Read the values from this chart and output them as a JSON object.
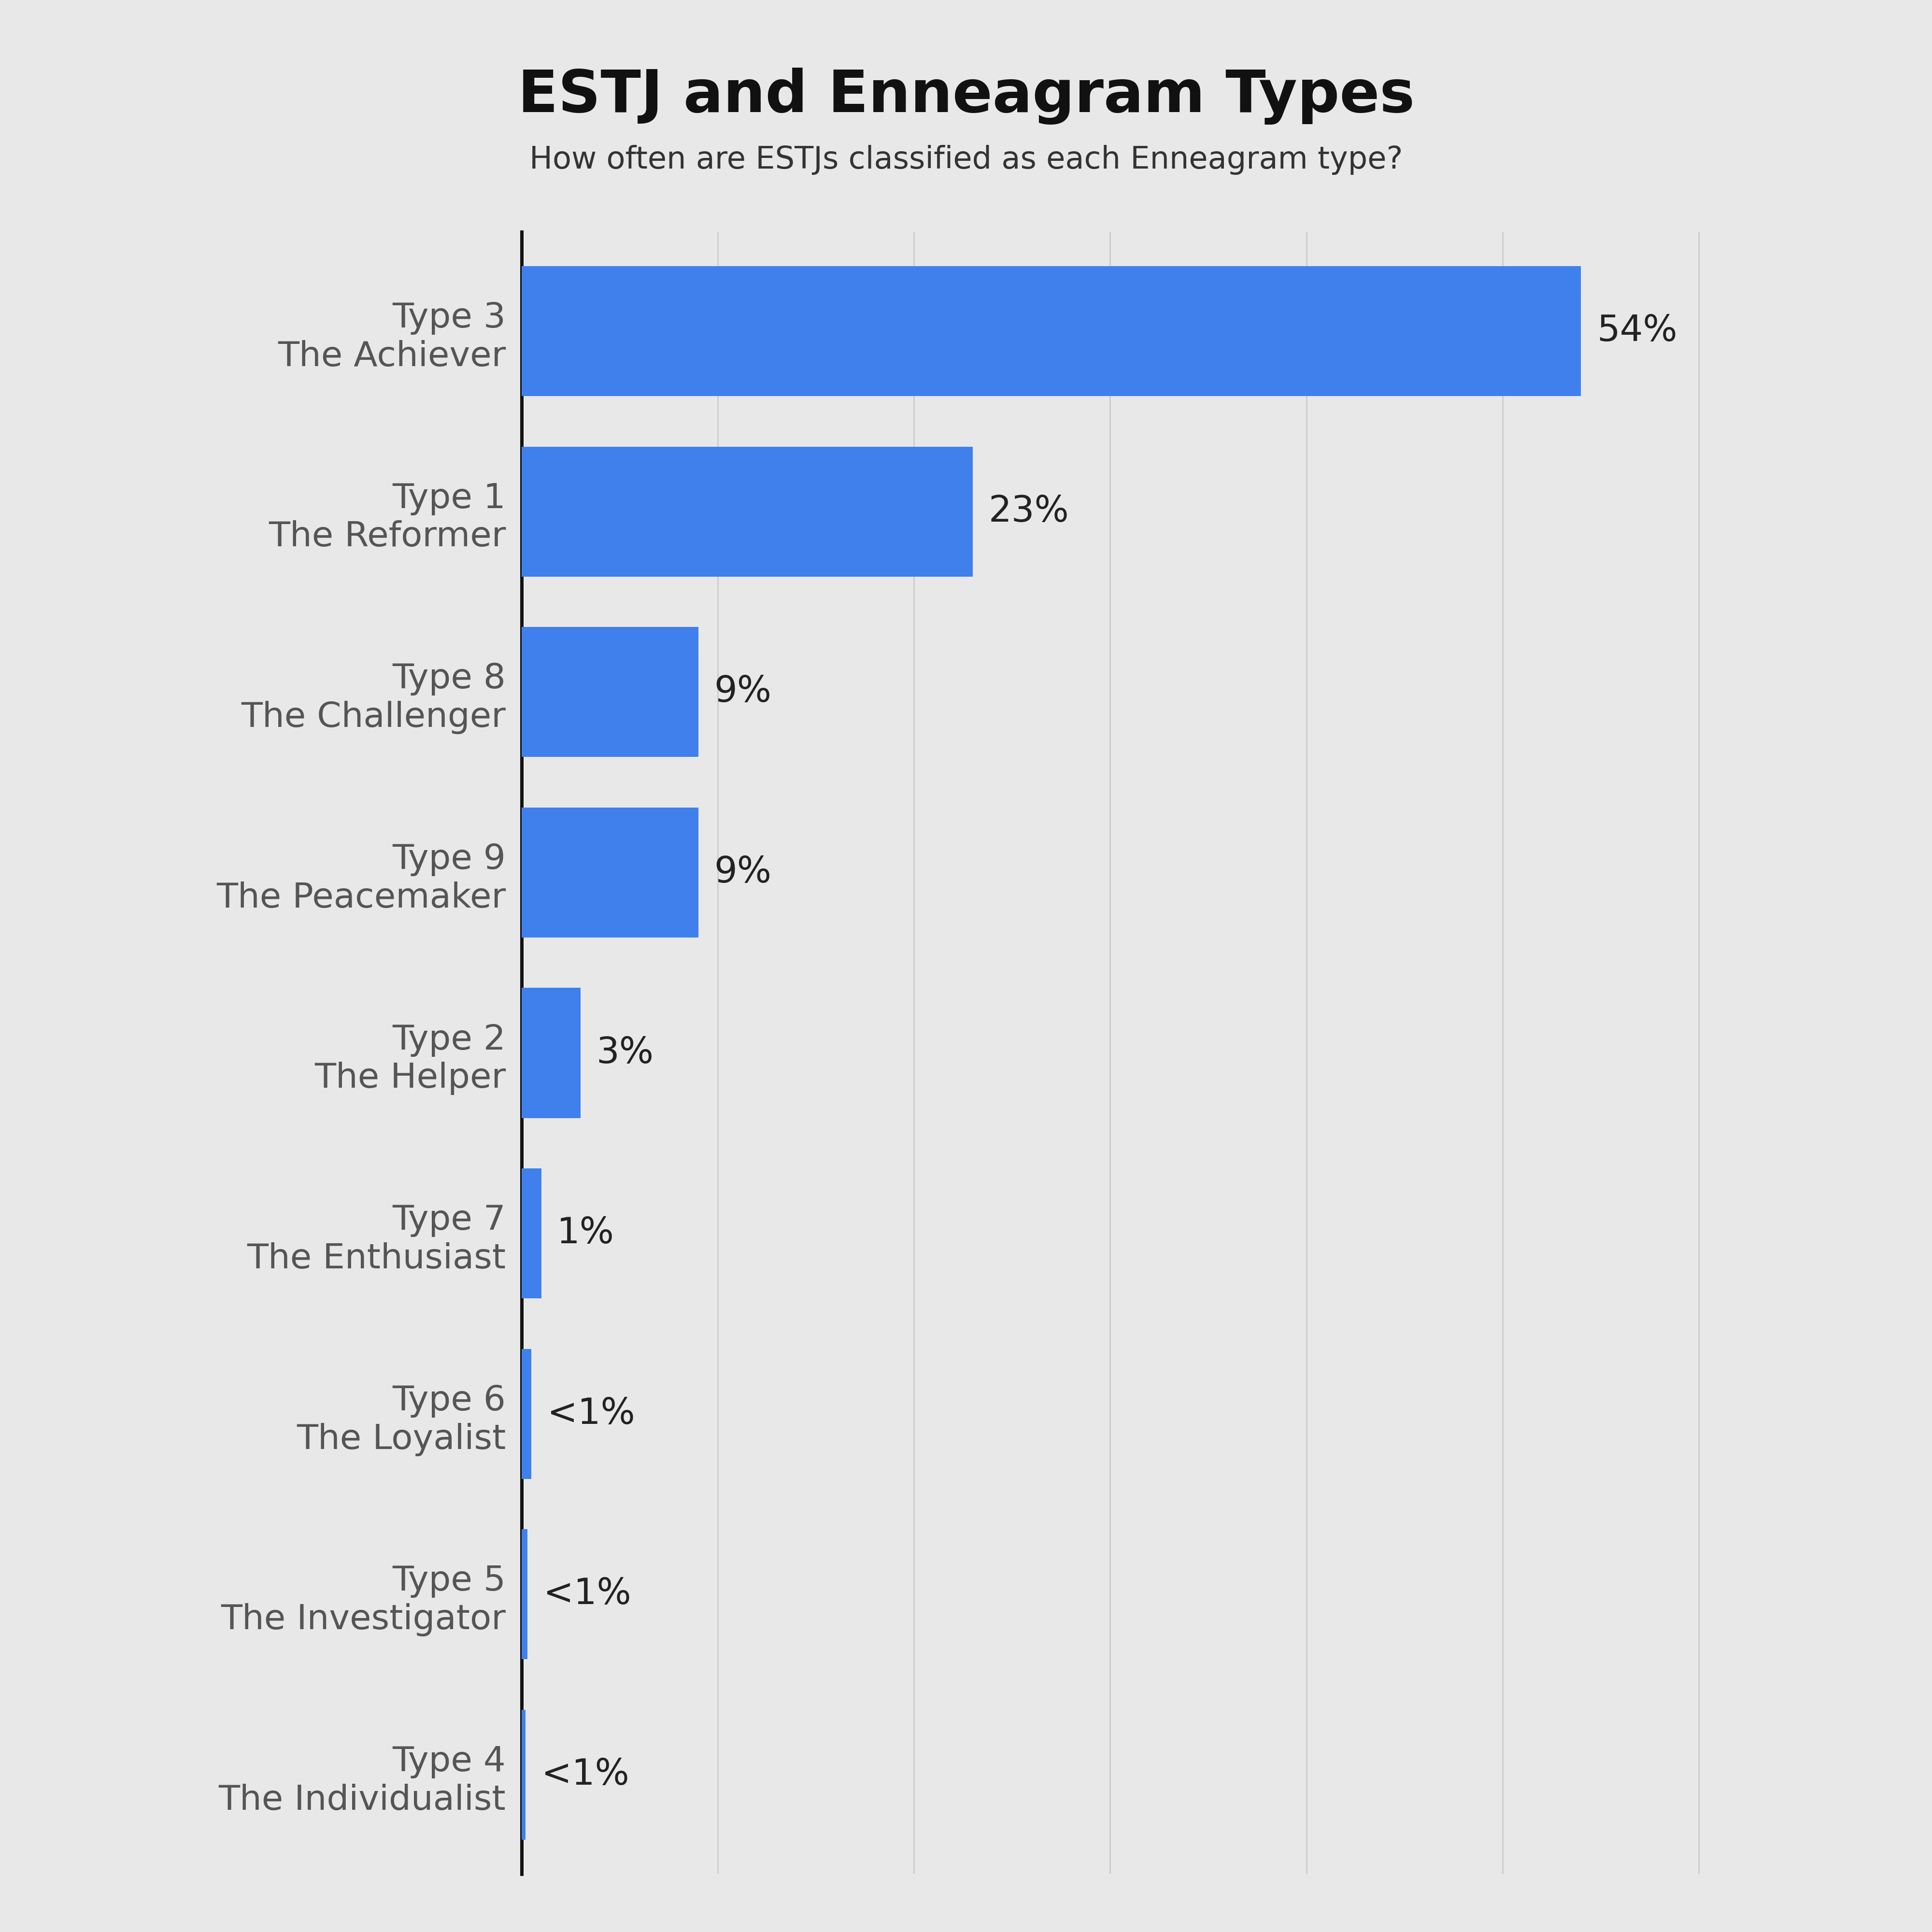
{
  "title": "ESTJ and Enneagram Types",
  "subtitle": "How often are ESTJs classified as each Enneagram type?",
  "categories": [
    "Type 3\nThe Achiever",
    "Type 1\nThe Reformer",
    "Type 8\nThe Challenger",
    "Type 9\nThe Peacemaker",
    "Type 2\nThe Helper",
    "Type 7\nThe Enthusiast",
    "Type 6\nThe Loyalist",
    "Type 5\nThe Investigator",
    "Type 4\nThe Individualist"
  ],
  "values": [
    54,
    23,
    9,
    9,
    3,
    1,
    0.5,
    0.3,
    0.2
  ],
  "labels": [
    "54%",
    "23%",
    "9%",
    "9%",
    "3%",
    "1%",
    "<1%",
    "<1%",
    "<1%"
  ],
  "bar_color": "#4080ed",
  "background_color": "#e8e8e8",
  "title_fontsize": 88,
  "subtitle_fontsize": 46,
  "label_fontsize": 54,
  "tick_fontsize": 52,
  "bar_height": 0.72,
  "xlim": [
    0,
    65
  ],
  "grid_color": "#cccccc",
  "spine_color": "#111111",
  "tick_color": "#555555",
  "label_color": "#222222"
}
